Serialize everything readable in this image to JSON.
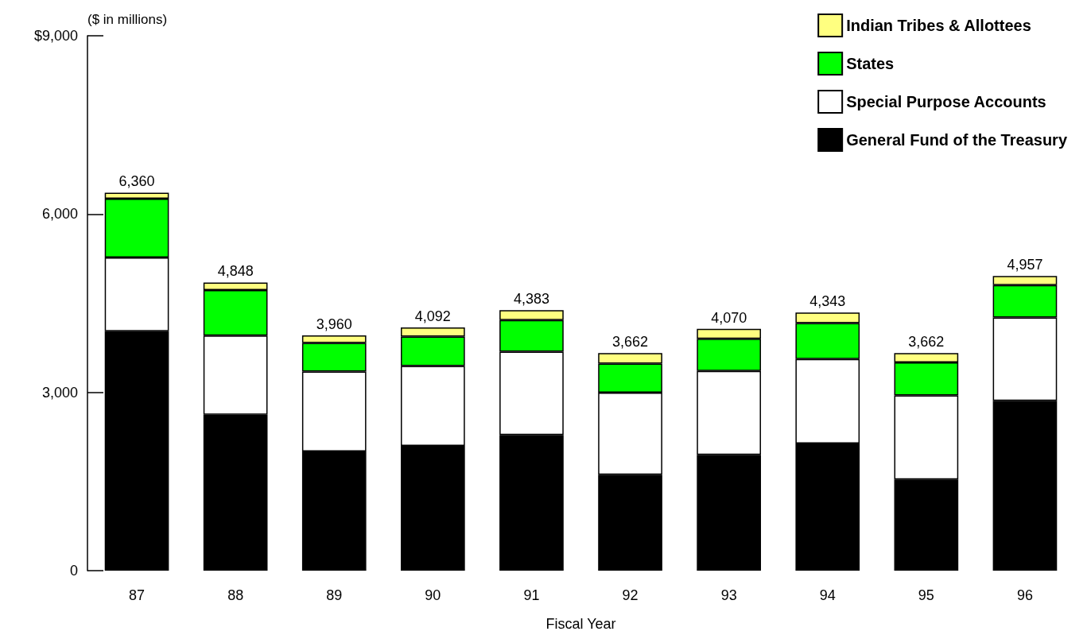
{
  "chart_data": {
    "type": "bar",
    "stacked": true,
    "ylabel": "($ in millions)",
    "xlabel": "Fiscal Year",
    "categories": [
      "87",
      "88",
      "89",
      "90",
      "91",
      "92",
      "93",
      "94",
      "95",
      "96"
    ],
    "series": [
      {
        "name": "General Fund of the Treasury",
        "color": "#000000",
        "values": [
          4030,
          2625,
          2005,
          2100,
          2285,
          1615,
          1950,
          2140,
          1535,
          2860
        ]
      },
      {
        "name": "Special Purpose Accounts",
        "color": "#ffffff",
        "values": [
          1240,
          1330,
          1345,
          1345,
          1400,
          1380,
          1410,
          1420,
          1415,
          1400
        ]
      },
      {
        "name": "States",
        "color": "#00ff00",
        "values": [
          990,
          765,
          480,
          495,
          530,
          490,
          540,
          605,
          555,
          545
        ]
      },
      {
        "name": "Indian Tribes & Allottees",
        "color": "#ffff80",
        "values": [
          100,
          128,
          130,
          152,
          168,
          177,
          170,
          178,
          157,
          152
        ]
      }
    ],
    "totals": [
      "6,360",
      "4,848",
      "3,960",
      "4,092",
      "4,383",
      "3,662",
      "4,070",
      "4,343",
      "3,662",
      "4,957"
    ],
    "ylim": [
      0,
      9000
    ],
    "yticks": [
      0,
      {
        "value": 3000,
        "label": "3,000"
      },
      {
        "value": 6000,
        "label": "6,000"
      },
      {
        "value": 9000,
        "label": "$9,000"
      }
    ],
    "grid": false,
    "legend": "top right"
  }
}
